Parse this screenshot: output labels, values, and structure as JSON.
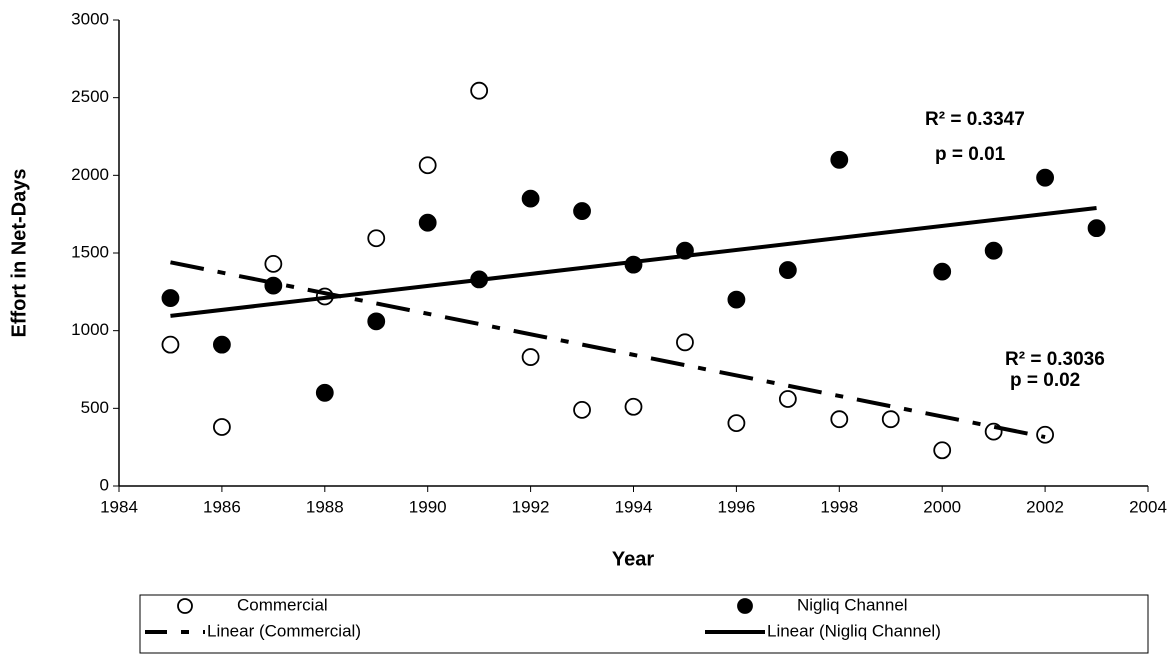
{
  "chart_data": {
    "type": "scatter",
    "x_label": "Year",
    "y_label": "Effort in Net-Days",
    "xlim": [
      1984,
      2004
    ],
    "xticks": [
      1984,
      1986,
      1988,
      1990,
      1992,
      1994,
      1996,
      1998,
      2000,
      2002,
      2004
    ],
    "ylim": [
      0,
      3000
    ],
    "yticks": [
      0,
      500,
      1000,
      1500,
      2000,
      2500,
      3000
    ],
    "grid": false,
    "legend": "bottom",
    "series": [
      {
        "name": "Commercial",
        "color": "#000000",
        "marker": "open",
        "x": [
          1985,
          1986,
          1987,
          1988,
          1989,
          1990,
          1991,
          1992,
          1993,
          1994,
          1995,
          1996,
          1997,
          1998,
          1999,
          2000,
          2001,
          2002
        ],
        "values": [
          910,
          380,
          1430,
          1220,
          1595,
          2065,
          2545,
          830,
          490,
          510,
          925,
          405,
          560,
          430,
          430,
          230,
          350,
          330
        ]
      },
      {
        "name": "Nigliq Channel",
        "color": "#000000",
        "marker": "filled",
        "x": [
          1985,
          1986,
          1987,
          1988,
          1989,
          1990,
          1991,
          1992,
          1993,
          1994,
          1995,
          1996,
          1997,
          1998,
          2000,
          2001,
          2002,
          2003
        ],
        "values": [
          1210,
          910,
          1290,
          600,
          1060,
          1695,
          1330,
          1850,
          1770,
          1425,
          1515,
          1200,
          1390,
          2100,
          1380,
          1515,
          1985,
          1660
        ]
      },
      {
        "name": "Linear (Commercial)",
        "color": "#000000",
        "line": "dashed",
        "x": [
          1985,
          2002
        ],
        "values": [
          1440,
          315
        ]
      },
      {
        "name": "Linear (Nigliq Channel)",
        "color": "#000000",
        "line": "solid",
        "x": [
          1985,
          2003
        ],
        "values": [
          1095,
          1790
        ]
      }
    ],
    "annotations": [
      "R² = 0.3347",
      "p = 0.01",
      "R² = 0.3036",
      "p = 0.02"
    ]
  }
}
